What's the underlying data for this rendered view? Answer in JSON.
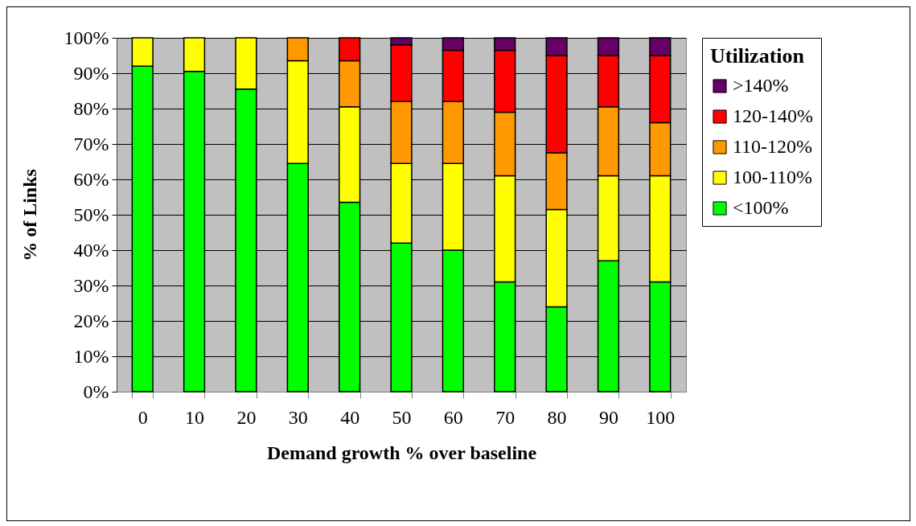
{
  "chart_data": {
    "type": "bar",
    "stacked": true,
    "xlabel": "Demand growth % over baseline",
    "ylabel": "% of Links",
    "legend_title": "Utilization",
    "categories": [
      "0",
      "10",
      "20",
      "30",
      "40",
      "50",
      "60",
      "70",
      "80",
      "90",
      "100"
    ],
    "series": [
      {
        "name": "<100%",
        "color": "#00ff00",
        "values": [
          92,
          90.5,
          85.5,
          64.5,
          53.5,
          42,
          40,
          31,
          24,
          37,
          31
        ]
      },
      {
        "name": "100-110%",
        "color": "#ffff00",
        "values": [
          8,
          9.5,
          14.5,
          29,
          27,
          22.5,
          24.5,
          30,
          27.5,
          24,
          30
        ]
      },
      {
        "name": "110-120%",
        "color": "#ff9900",
        "values": [
          null,
          null,
          null,
          6.5,
          13,
          17.5,
          17.5,
          18,
          16,
          19.5,
          15
        ]
      },
      {
        "name": "120-140%",
        "color": "#ff0000",
        "values": [
          null,
          null,
          null,
          null,
          6.5,
          16,
          14.5,
          17.5,
          27.5,
          14.5,
          19
        ]
      },
      {
        "name": ">140%",
        "color": "#660066",
        "values": [
          null,
          null,
          null,
          null,
          null,
          2,
          3.5,
          3.5,
          5,
          5,
          5
        ]
      }
    ],
    "ylim": [
      0,
      100
    ],
    "yticks": [
      {
        "value": 0,
        "label": "0%"
      },
      {
        "value": 10,
        "label": "10%"
      },
      {
        "value": 20,
        "label": "20%"
      },
      {
        "value": 30,
        "label": "30%"
      },
      {
        "value": 40,
        "label": "40%"
      },
      {
        "value": 50,
        "label": "50%"
      },
      {
        "value": 60,
        "label": "60%"
      },
      {
        "value": 70,
        "label": "70%"
      },
      {
        "value": 80,
        "label": "80%"
      },
      {
        "value": 90,
        "label": "90%"
      },
      {
        "value": 100,
        "label": "100%"
      }
    ],
    "grid": "y",
    "legend": "right"
  }
}
